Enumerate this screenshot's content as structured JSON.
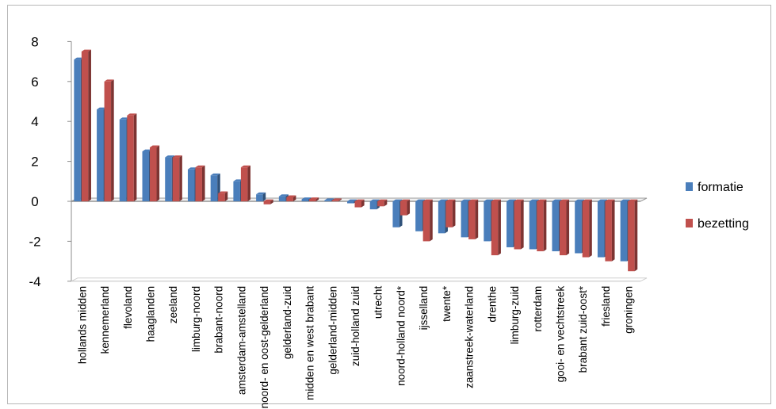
{
  "chart_data": {
    "type": "bar",
    "title": "",
    "xlabel": "",
    "ylabel": "",
    "ylim": [
      -4,
      8
    ],
    "yticks": [
      -4,
      -2,
      0,
      2,
      4,
      6,
      8
    ],
    "yticks_labels": [
      "-4",
      "-2",
      "0",
      "2",
      "4",
      "6",
      "8"
    ],
    "grid": false,
    "legend_position": "right",
    "style": "3d-clustered-column",
    "categories": [
      "hollands midden",
      "kennemerland",
      "flevoland",
      "haaglanden",
      "zeeland",
      "limburg-noord",
      "brabant-noord",
      "amsterdam-amstelland",
      "noord- en oost-gelderland",
      "gelderland-zuid",
      "midden en west brabant",
      "gelderland-midden",
      "zuid-holland zuid",
      "utrecht",
      "noord-holland noord*",
      "ijsselland",
      "twente*",
      "zaanstreek-waterland",
      "drenthe",
      "limburg-zuid",
      "rotterdam",
      "gooi- en vechtstreek",
      "brabant zuid-oost*",
      "friesland",
      "groningen"
    ],
    "series": [
      {
        "name": "formatie",
        "color": "#4a7ebb",
        "values": [
          7.1,
          4.6,
          4.1,
          2.5,
          2.2,
          1.6,
          1.3,
          1.0,
          0.35,
          0.25,
          0.1,
          0.05,
          -0.1,
          -0.4,
          -1.3,
          -1.5,
          -1.6,
          -1.8,
          -2.0,
          -2.3,
          -2.4,
          -2.5,
          -2.6,
          -2.8,
          -3.0
        ]
      },
      {
        "name": "bezetting",
        "color": "#c0504d",
        "values": [
          7.5,
          6.0,
          4.3,
          2.7,
          2.2,
          1.7,
          0.4,
          1.7,
          -0.15,
          0.2,
          0.1,
          0.05,
          -0.3,
          -0.25,
          -0.7,
          -2.0,
          -1.3,
          -1.9,
          -2.7,
          -2.4,
          -2.5,
          -2.7,
          -2.8,
          -3.0,
          -3.5
        ]
      }
    ]
  }
}
